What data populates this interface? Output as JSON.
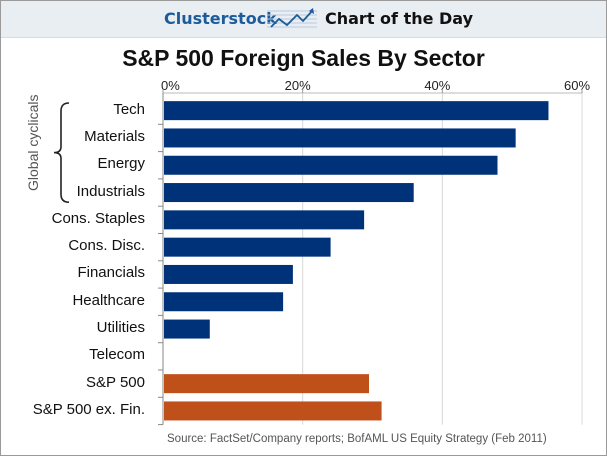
{
  "banner": {
    "brand": "Clusterstock",
    "label": "Chart of the Day",
    "icon": "rising-chart-icon"
  },
  "colors": {
    "sector_bar": "#00327a",
    "index_bar": "#c0501a",
    "banner_bg": "#e9eef3",
    "brand_text": "#1d5b9a"
  },
  "chart_data": {
    "type": "bar",
    "orientation": "horizontal",
    "title": "S&P 500 Foreign Sales By Sector",
    "xlabel": "",
    "ylabel": "",
    "xlim": [
      0,
      60
    ],
    "x_ticks": [
      "0%",
      "20%",
      "40%",
      "60%"
    ],
    "x_tick_values": [
      0,
      20,
      40,
      60
    ],
    "axis_position": "top",
    "grid": true,
    "categories": [
      "Tech",
      "Materials",
      "Energy",
      "Industrials",
      "Cons. Staples",
      "Cons. Disc.",
      "Financials",
      "Healthcare",
      "Utilities",
      "Telecom",
      "S&P 500",
      "S&P 500 ex. Fin."
    ],
    "values": [
      55.2,
      50.5,
      47.9,
      35.9,
      28.8,
      24.0,
      18.6,
      17.2,
      6.7,
      0,
      29.5,
      31.3
    ],
    "bar_groups": [
      "sector",
      "sector",
      "sector",
      "sector",
      "sector",
      "sector",
      "sector",
      "sector",
      "sector",
      "sector",
      "index",
      "index"
    ],
    "annotations": [
      {
        "text": "Global cyclicals",
        "applies_to": [
          "Tech",
          "Materials",
          "Energy",
          "Industrials"
        ],
        "style": "brace"
      }
    ],
    "source": "Source: FactSet/Company reports; BofAML US Equity Strategy (Feb 2011)"
  }
}
